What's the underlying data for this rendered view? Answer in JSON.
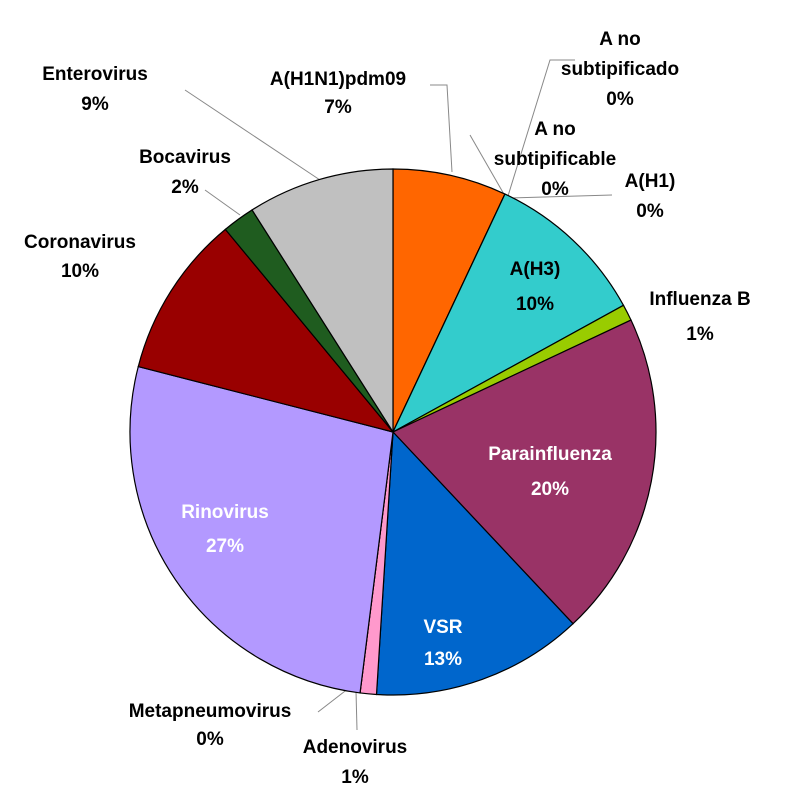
{
  "chart_data": {
    "type": "pie",
    "categories": [
      "A(H1N1)pdm09",
      "A no subtipificado",
      "A no subtipificable",
      "A(H1)",
      "A(H3)",
      "Influenza B",
      "Parainfluenza",
      "VSR",
      "Adenovirus",
      "Metapneumovirus",
      "Rinovirus",
      "Coronavirus",
      "Bocavirus",
      "Enterovirus"
    ],
    "values": [
      7,
      0,
      0,
      0,
      10,
      1,
      20,
      13,
      1,
      0,
      27,
      10,
      2,
      9
    ],
    "value_labels": [
      "7%",
      "0%",
      "0%",
      "0%",
      "10%",
      "1%",
      "20%",
      "13%",
      "1%",
      "0%",
      "27%",
      "10%",
      "2%",
      "9%"
    ],
    "colors": [
      "#ff6600",
      "#3366ff",
      "#ffcc00",
      "#cc0000",
      "#33cccc",
      "#99cc00",
      "#993366",
      "#0066cc",
      "#ff99cc",
      "#333399",
      "#b399ff",
      "#990000",
      "#1f5c1f",
      "#c0c0c0"
    ]
  }
}
